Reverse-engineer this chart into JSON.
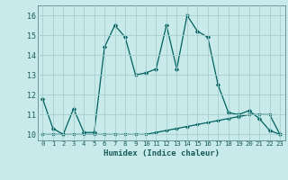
{
  "xlabel": "Humidex (Indice chaleur)",
  "x": [
    0,
    1,
    2,
    3,
    4,
    5,
    6,
    7,
    8,
    9,
    10,
    11,
    12,
    13,
    14,
    15,
    16,
    17,
    18,
    19,
    20,
    21,
    22,
    23
  ],
  "y_main": [
    11.8,
    10.3,
    10.0,
    11.3,
    10.1,
    10.1,
    14.4,
    15.5,
    14.9,
    13.0,
    13.1,
    13.3,
    15.5,
    13.3,
    16.0,
    15.2,
    14.9,
    12.5,
    11.1,
    11.0,
    11.2,
    10.8,
    10.2,
    10.0
  ],
  "y_lower": [
    10.0,
    10.0,
    10.0,
    10.0,
    10.0,
    10.0,
    10.0,
    10.0,
    10.0,
    10.0,
    10.0,
    10.1,
    10.2,
    10.3,
    10.4,
    10.5,
    10.6,
    10.7,
    10.8,
    10.9,
    11.0,
    11.0,
    11.0,
    10.0
  ],
  "line_color": "#006060",
  "bg_color": "#c8eaea",
  "grid_color": "#a8cece",
  "ylim": [
    9.7,
    16.5
  ],
  "yticks": [
    10,
    11,
    12,
    13,
    14,
    15,
    16
  ],
  "xlim": [
    -0.5,
    23.5
  ],
  "xticks": [
    0,
    1,
    2,
    3,
    4,
    5,
    6,
    7,
    8,
    9,
    10,
    11,
    12,
    13,
    14,
    15,
    16,
    17,
    18,
    19,
    20,
    21,
    22,
    23
  ]
}
